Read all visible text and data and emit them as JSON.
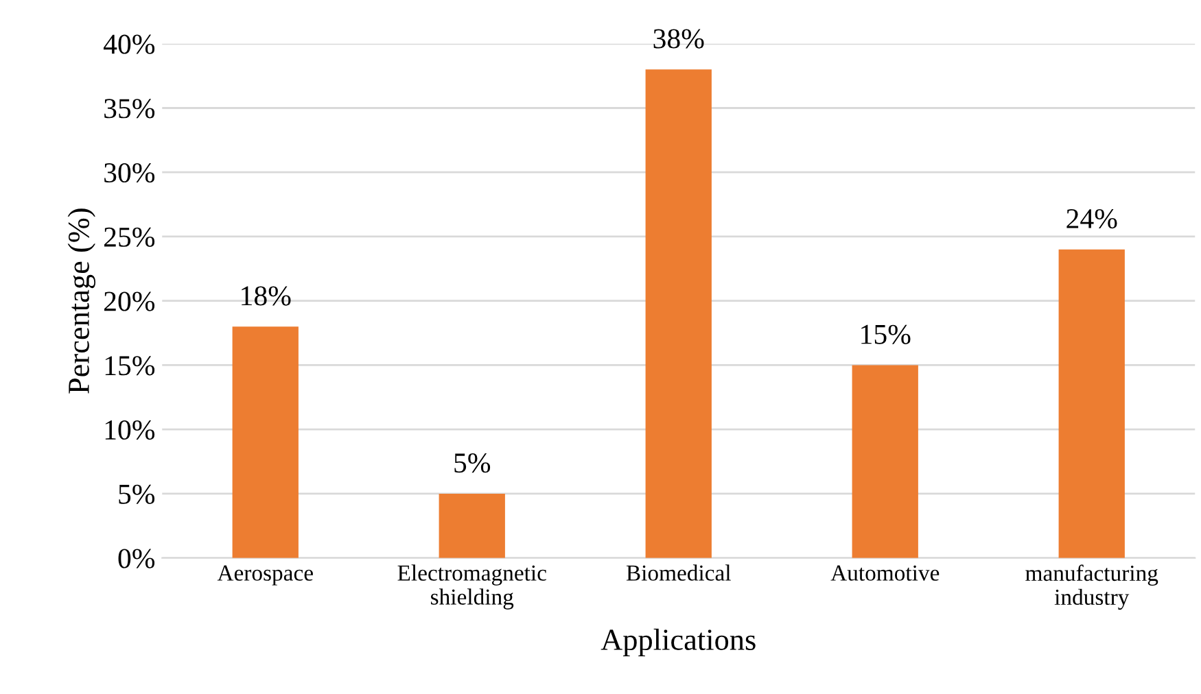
{
  "chart_data": {
    "type": "bar",
    "xlabel": "Applications",
    "ylabel": "Percentage (%)",
    "categories": [
      "Aerospace",
      "Electromagnetic\nshielding",
      "Biomedical",
      "Automotive",
      "manufacturing\nindustry"
    ],
    "values": [
      18,
      5,
      38,
      15,
      24
    ],
    "value_labels": [
      "18%",
      "5%",
      "38%",
      "15%",
      "24%"
    ],
    "color": "#ed7d31",
    "ylim": [
      0,
      40
    ],
    "yticks": [
      {
        "value": 0,
        "label": "0%"
      },
      {
        "value": 5,
        "label": "5%"
      },
      {
        "value": 10,
        "label": "10%"
      },
      {
        "value": 15,
        "label": "15%"
      },
      {
        "value": 20,
        "label": "20%"
      },
      {
        "value": 25,
        "label": "25%"
      },
      {
        "value": 30,
        "label": "30%"
      },
      {
        "value": 35,
        "label": "35%"
      },
      {
        "value": 40,
        "label": "40%"
      }
    ],
    "grid": "y",
    "legend": false
  }
}
